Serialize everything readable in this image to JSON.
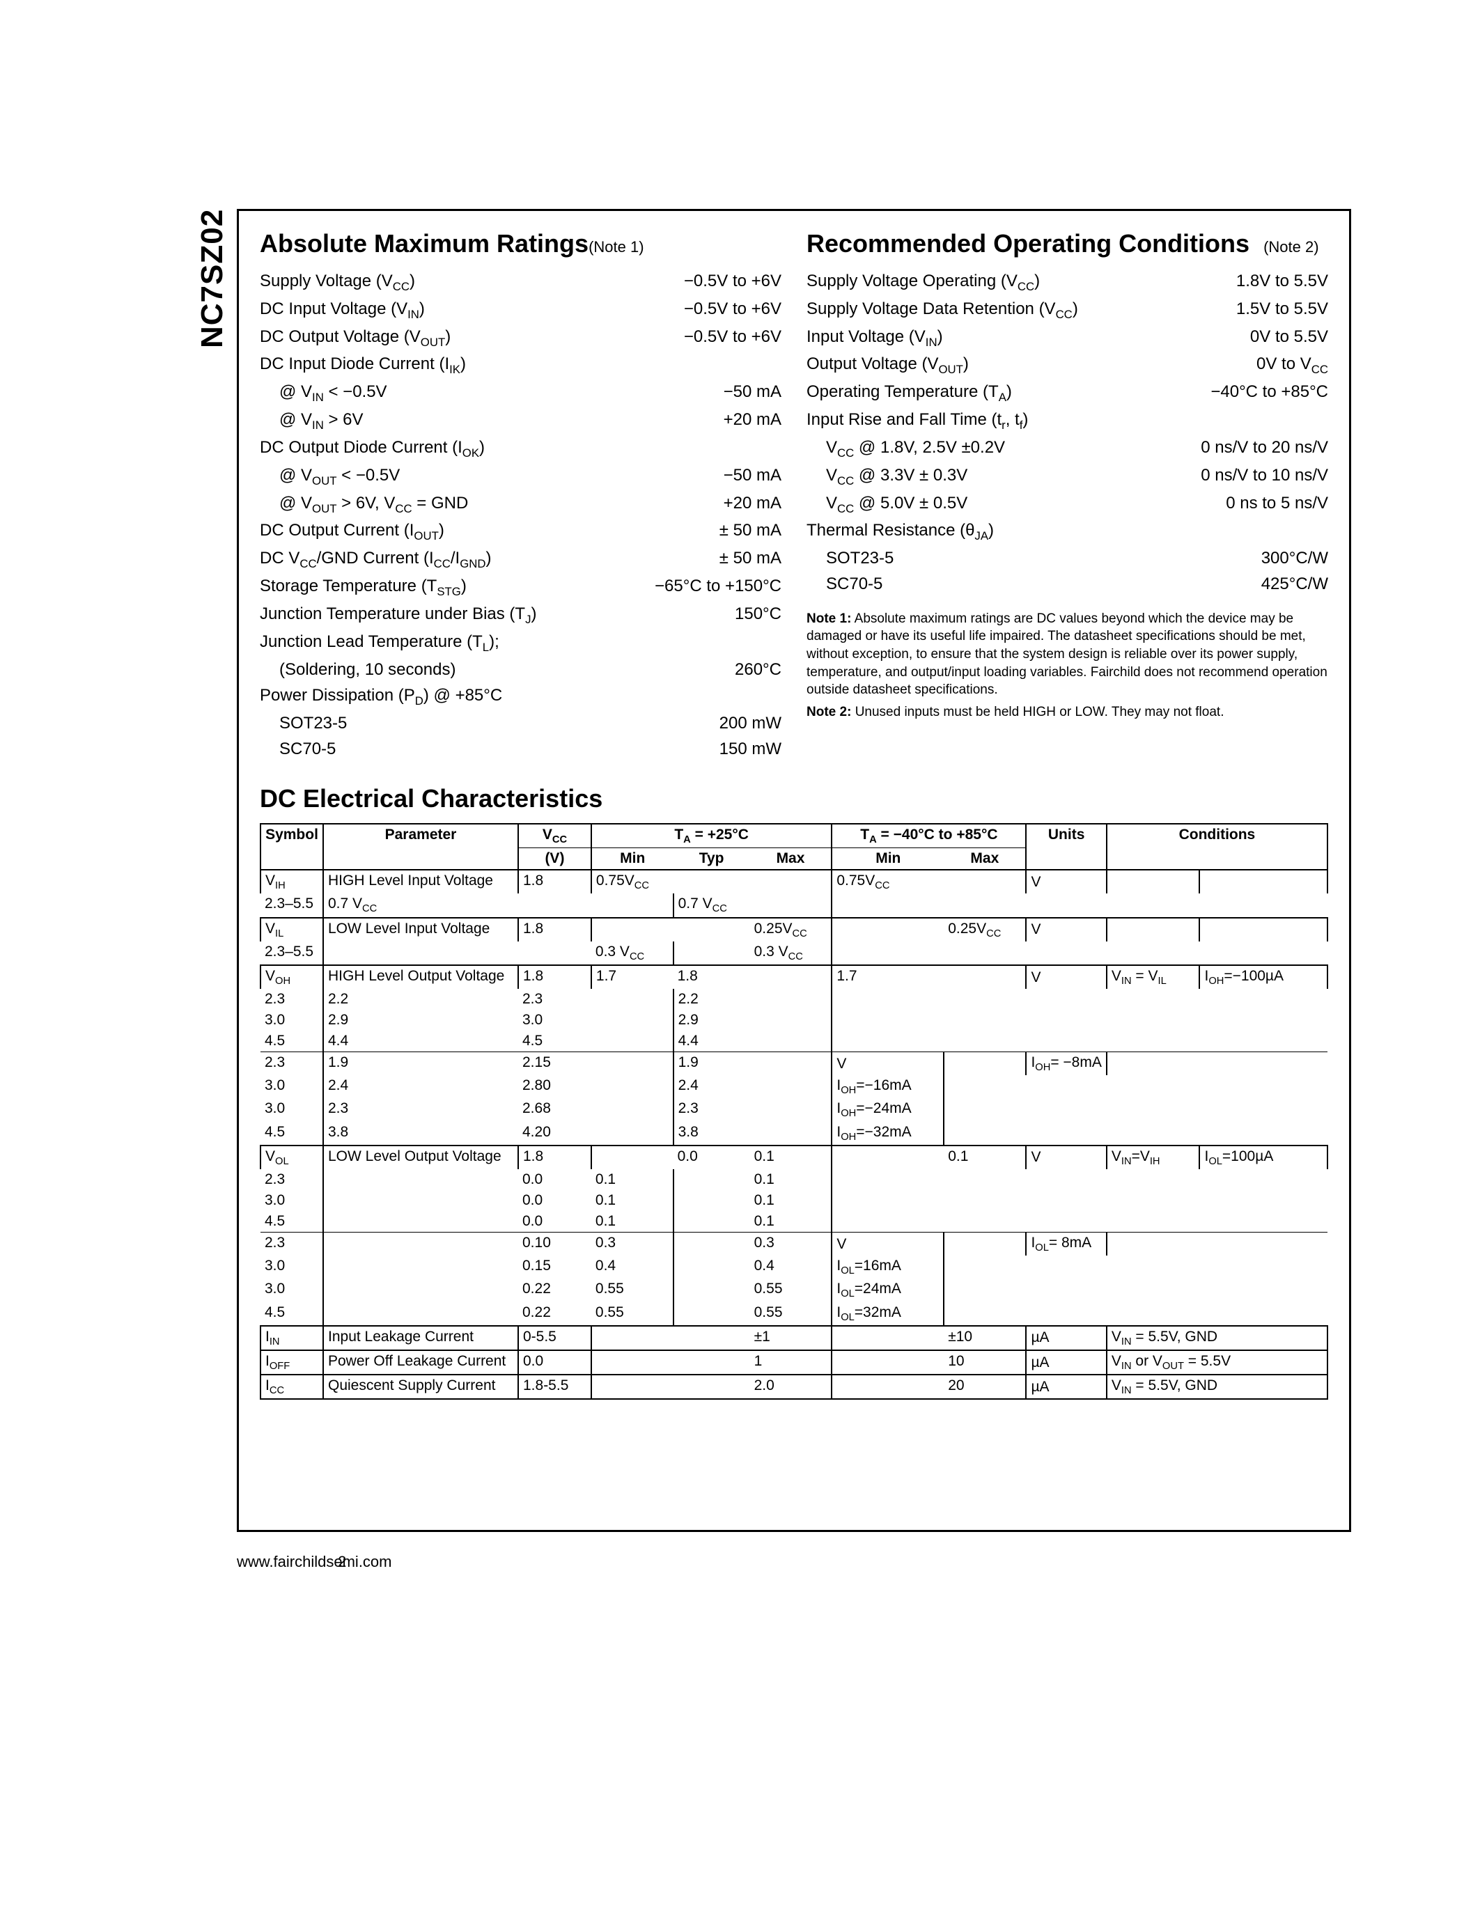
{
  "part_number": "NC7SZ02",
  "sections": {
    "abs_max": {
      "title": "Absolute Maximum Ratings",
      "note_ref": "(Note 1)",
      "rows": [
        {
          "label": "Supply Voltage (V<sub>CC</sub>)",
          "value": "−0.5V to +6V"
        },
        {
          "label": "DC Input Voltage (V<sub>IN</sub>)",
          "value": "−0.5V to +6V"
        },
        {
          "label": "DC Output Voltage (V<sub>OUT</sub>)",
          "value": "−0.5V to +6V"
        },
        {
          "label": "DC Input Diode Current (I<sub>IK</sub>)",
          "value": ""
        },
        {
          "label": "@ V<sub>IN</sub> &lt; −0.5V",
          "value": "−50 mA",
          "indent": true
        },
        {
          "label": "@ V<sub>IN</sub> &gt; 6V",
          "value": "+20 mA",
          "indent": true
        },
        {
          "label": "DC Output Diode Current (I<sub>OK</sub>)",
          "value": ""
        },
        {
          "label": "@ V<sub>OUT</sub> &lt; −0.5V",
          "value": "−50 mA",
          "indent": true
        },
        {
          "label": "@ V<sub>OUT</sub> &gt; 6V, V<sub>CC</sub> = GND",
          "value": "+20 mA",
          "indent": true
        },
        {
          "label": "DC Output Current (I<sub>OUT</sub>)",
          "value": "± 50 mA"
        },
        {
          "label": "DC V<sub>CC</sub>/GND Current (I<sub>CC</sub>/I<sub>GND</sub>)",
          "value": "± 50 mA"
        },
        {
          "label": "Storage Temperature (T<sub>STG</sub>)",
          "value": "−65°C to +150°C"
        },
        {
          "label": "Junction Temperature under Bias (T<sub>J</sub>)",
          "value": "150°C"
        },
        {
          "label": "Junction Lead Temperature (T<sub>L</sub>);",
          "value": ""
        },
        {
          "label": "(Soldering, 10 seconds)",
          "value": "260°C",
          "indent": true
        },
        {
          "label": "Power Dissipation (P<sub>D</sub>) @ +85°C",
          "value": ""
        },
        {
          "label": "SOT23-5",
          "value": "200 mW",
          "indent": true
        },
        {
          "label": "SC70-5",
          "value": "150 mW",
          "indent": true
        }
      ]
    },
    "rec_op": {
      "title": "Recommended Operating Conditions",
      "note_ref": "(Note 2)",
      "rows": [
        {
          "label": "Supply Voltage Operating (V<sub>CC</sub>)",
          "value": "1.8V to 5.5V"
        },
        {
          "label": "Supply Voltage Data Retention (V<sub>CC</sub>)",
          "value": "1.5V to 5.5V"
        },
        {
          "label": "Input Voltage (V<sub>IN</sub>)",
          "value": "0V to 5.5V"
        },
        {
          "label": "Output Voltage (V<sub>OUT</sub>)",
          "value": "0V to V<sub>CC</sub>"
        },
        {
          "label": "Operating Temperature (T<sub>A</sub>)",
          "value": "−40°C to +85°C"
        },
        {
          "label": "Input Rise and Fall Time (t<sub>r</sub>, t<sub>f</sub>)",
          "value": ""
        },
        {
          "label": "V<sub>CC</sub> @ 1.8V, 2.5V ±0.2V",
          "value": "0 ns/V to 20 ns/V",
          "indent": true
        },
        {
          "label": "V<sub>CC</sub> @ 3.3V ± 0.3V",
          "value": "0 ns/V to 10 ns/V",
          "indent": true
        },
        {
          "label": "V<sub>CC</sub> @ 5.0V ± 0.5V",
          "value": "0 ns to 5 ns/V",
          "indent": true
        },
        {
          "label": "Thermal Resistance (θ<sub>JA</sub>)",
          "value": ""
        },
        {
          "label": "SOT23-5",
          "value": "300°C/W",
          "indent": true
        },
        {
          "label": "SC70-5",
          "value": "425°C/W",
          "indent": true
        }
      ]
    }
  },
  "notes": {
    "note1": "Note 1: Absolute maximum ratings are DC values beyond which the device may be damaged or have its useful life impaired. The datasheet specifications should be met, without exception, to ensure that the system design is reliable over its power supply, temperature, and output/input loading variables. Fairchild does not recommend operation outside datasheet specifications.",
    "note2": "Note 2: Unused inputs must be held HIGH or LOW. They may not float."
  },
  "dc_table": {
    "title": "DC Electrical Characteristics",
    "headers": {
      "symbol": "Symbol",
      "parameter": "Parameter",
      "vcc": "V<sub>CC</sub>",
      "vcc_unit": "(V)",
      "temp25": "T<sub>A</sub> = +25°C",
      "temp_range": "T<sub>A</sub> = −40°C to +85°C",
      "min": "Min",
      "typ": "Typ",
      "max": "Max",
      "units": "Units",
      "conditions": "Conditions"
    },
    "groups": [
      {
        "symbol": "V<sub>IH</sub>",
        "parameter": "HIGH Level Input Voltage",
        "units": "V",
        "cond1": "",
        "cond2": "",
        "rows": [
          {
            "vcc": "1.8",
            "min25": "0.75V<sub>CC</sub>",
            "typ25": "",
            "max25": "",
            "minr": "0.75V<sub>CC</sub>",
            "maxr": ""
          },
          {
            "vcc": "2.3–5.5",
            "min25": "0.7 V<sub>CC</sub>",
            "typ25": "",
            "max25": "",
            "minr": "0.7 V<sub>CC</sub>",
            "maxr": ""
          }
        ]
      },
      {
        "symbol": "V<sub>IL</sub>",
        "parameter": "LOW Level Input Voltage",
        "units": "V",
        "cond1": "",
        "cond2": "",
        "rows": [
          {
            "vcc": "1.8",
            "min25": "",
            "typ25": "",
            "max25": "0.25V<sub>CC</sub>",
            "minr": "",
            "maxr": "0.25V<sub>CC</sub>"
          },
          {
            "vcc": "2.3–5.5",
            "min25": "",
            "typ25": "",
            "max25": "0.3 V<sub>CC</sub>",
            "minr": "",
            "maxr": "0.3 V<sub>CC</sub>"
          }
        ]
      },
      {
        "symbol": "V<sub>OH</sub>",
        "parameter": "HIGH Level Output Voltage",
        "blocks": [
          {
            "units": "V",
            "cond1": "V<sub>IN</sub> = V<sub>IL</sub>",
            "cond2": "I<sub>OH</sub>=−100µA",
            "rows": [
              {
                "vcc": "1.8",
                "min25": "1.7",
                "typ25": "1.8",
                "max25": "",
                "minr": "1.7",
                "maxr": ""
              },
              {
                "vcc": "2.3",
                "min25": "2.2",
                "typ25": "2.3",
                "max25": "",
                "minr": "2.2",
                "maxr": ""
              },
              {
                "vcc": "3.0",
                "min25": "2.9",
                "typ25": "3.0",
                "max25": "",
                "minr": "2.9",
                "maxr": ""
              },
              {
                "vcc": "4.5",
                "min25": "4.4",
                "typ25": "4.5",
                "max25": "",
                "minr": "4.4",
                "maxr": ""
              }
            ]
          },
          {
            "units": "V",
            "cond1": "",
            "cond2_rows": [
              "I<sub>OH</sub>= −8mA",
              "I<sub>OH</sub>=−16mA",
              "I<sub>OH</sub>=−24mA",
              "I<sub>OH</sub>=−32mA"
            ],
            "rows": [
              {
                "vcc": "2.3",
                "min25": "1.9",
                "typ25": "2.15",
                "max25": "",
                "minr": "1.9",
                "maxr": ""
              },
              {
                "vcc": "3.0",
                "min25": "2.4",
                "typ25": "2.80",
                "max25": "",
                "minr": "2.4",
                "maxr": ""
              },
              {
                "vcc": "3.0",
                "min25": "2.3",
                "typ25": "2.68",
                "max25": "",
                "minr": "2.3",
                "maxr": ""
              },
              {
                "vcc": "4.5",
                "min25": "3.8",
                "typ25": "4.20",
                "max25": "",
                "minr": "3.8",
                "maxr": ""
              }
            ]
          }
        ]
      },
      {
        "symbol": "V<sub>OL</sub>",
        "parameter": "LOW Level Output Voltage",
        "blocks": [
          {
            "units": "V",
            "cond1": "V<sub>IN</sub>=V<sub>IH</sub>",
            "cond2": "I<sub>OL</sub>=100µA",
            "rows": [
              {
                "vcc": "1.8",
                "min25": "",
                "typ25": "0.0",
                "max25": "0.1",
                "minr": "",
                "maxr": "0.1"
              },
              {
                "vcc": "2.3",
                "min25": "",
                "typ25": "0.0",
                "max25": "0.1",
                "minr": "",
                "maxr": "0.1"
              },
              {
                "vcc": "3.0",
                "min25": "",
                "typ25": "0.0",
                "max25": "0.1",
                "minr": "",
                "maxr": "0.1"
              },
              {
                "vcc": "4.5",
                "min25": "",
                "typ25": "0.0",
                "max25": "0.1",
                "minr": "",
                "maxr": "0.1"
              }
            ]
          },
          {
            "units": "V",
            "cond1": "",
            "cond2_rows": [
              "I<sub>OL</sub>= 8mA",
              "I<sub>OL</sub>=16mA",
              "I<sub>OL</sub>=24mA",
              "I<sub>OL</sub>=32mA"
            ],
            "rows": [
              {
                "vcc": "2.3",
                "min25": "",
                "typ25": "0.10",
                "max25": "0.3",
                "minr": "",
                "maxr": "0.3"
              },
              {
                "vcc": "3.0",
                "min25": "",
                "typ25": "0.15",
                "max25": "0.4",
                "minr": "",
                "maxr": "0.4"
              },
              {
                "vcc": "3.0",
                "min25": "",
                "typ25": "0.22",
                "max25": "0.55",
                "minr": "",
                "maxr": "0.55"
              },
              {
                "vcc": "4.5",
                "min25": "",
                "typ25": "0.22",
                "max25": "0.55",
                "minr": "",
                "maxr": "0.55"
              }
            ]
          }
        ]
      },
      {
        "symbol": "I<sub>IN</sub>",
        "parameter": "Input Leakage Current",
        "units": "µA",
        "cond_full": "V<sub>IN</sub> = 5.5V, GND",
        "rows": [
          {
            "vcc": "0-5.5",
            "min25": "",
            "typ25": "",
            "max25": "±1",
            "minr": "",
            "maxr": "±10"
          }
        ]
      },
      {
        "symbol": "I<sub>OFF</sub>",
        "parameter": "Power Off Leakage Current",
        "units": "µA",
        "cond_full": "V<sub>IN</sub> or V<sub>OUT</sub> = 5.5V",
        "rows": [
          {
            "vcc": "0.0",
            "min25": "",
            "typ25": "",
            "max25": "1",
            "minr": "",
            "maxr": "10"
          }
        ]
      },
      {
        "symbol": "I<sub>CC</sub>",
        "parameter": "Quiescent Supply Current",
        "units": "µA",
        "cond_full": "V<sub>IN</sub> = 5.5V, GND",
        "rows": [
          {
            "vcc": "1.8-5.5",
            "min25": "",
            "typ25": "",
            "max25": "2.0",
            "minr": "",
            "maxr": "20"
          }
        ]
      }
    ]
  },
  "footer": {
    "url": "www.fairchildsemi.com",
    "page": "2"
  }
}
